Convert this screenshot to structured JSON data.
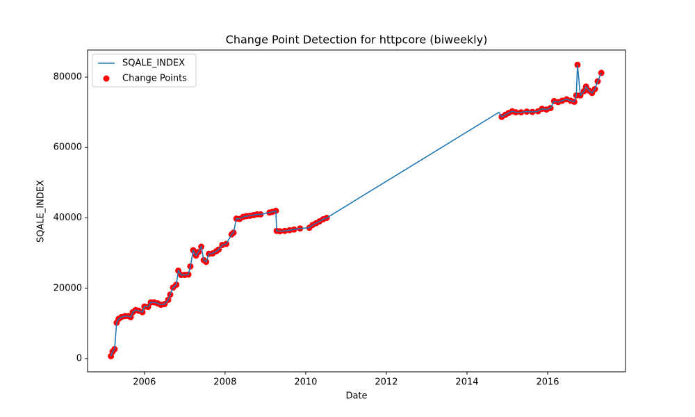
{
  "chart_data": {
    "type": "line",
    "title": "Change Point Detection for httpcore (biweekly)",
    "x_label": "Date",
    "y_label": "SQALE_INDEX",
    "xlim": [
      2004.59,
      2017.93
    ],
    "ylim": [
      -3750,
      87700
    ],
    "xticks": [
      2006,
      2008,
      2010,
      2012,
      2014,
      2016
    ],
    "yticks": [
      0,
      20000,
      40000,
      60000,
      80000
    ],
    "legend": "upper left",
    "series": [
      {
        "name": "SQALE_INDEX",
        "type": "line",
        "color": "#1f77b4",
        "x": [
          2005.17,
          2005.21,
          2005.26,
          2005.31,
          2005.36,
          2005.43,
          2005.52,
          2005.6,
          2005.66,
          2005.71,
          2005.78,
          2005.86,
          2005.95,
          2006.0,
          2006.09,
          2006.16,
          2006.24,
          2006.33,
          2006.41,
          2006.5,
          2006.59,
          2006.64,
          2006.71,
          2006.79,
          2006.84,
          2006.91,
          2007.0,
          2007.09,
          2007.14,
          2007.21,
          2007.28,
          2007.34,
          2007.41,
          2007.47,
          2007.53,
          2007.6,
          2007.69,
          2007.78,
          2007.84,
          2007.93,
          2008.03,
          2008.16,
          2008.21,
          2008.28,
          2008.36,
          2008.45,
          2008.53,
          2008.62,
          2008.71,
          2008.79,
          2008.88,
          2009.1,
          2009.17,
          2009.26,
          2009.28,
          2009.36,
          2009.48,
          2009.6,
          2009.71,
          2009.86,
          2010.09,
          2010.17,
          2010.26,
          2010.34,
          2010.43,
          2010.52,
          2014.79,
          2014.86,
          2014.95,
          2015.03,
          2015.12,
          2015.21,
          2015.34,
          2015.48,
          2015.62,
          2015.76,
          2015.86,
          2015.97,
          2016.07,
          2016.16,
          2016.26,
          2016.36,
          2016.47,
          2016.57,
          2016.66,
          2016.71,
          2016.74,
          2016.81,
          2016.9,
          2016.95,
          2017.02,
          2017.1,
          2017.17,
          2017.24,
          2017.33
        ],
        "values": [
          700,
          2000,
          2700,
          10200,
          11300,
          11800,
          12100,
          12100,
          11800,
          13200,
          13800,
          13600,
          13200,
          14800,
          14700,
          16000,
          16000,
          15700,
          15300,
          15500,
          16700,
          18200,
          20200,
          21000,
          25000,
          23800,
          23800,
          23900,
          26200,
          30800,
          29300,
          30300,
          31800,
          28000,
          27500,
          29800,
          29900,
          30500,
          31000,
          32300,
          32600,
          35300,
          35800,
          39800,
          39700,
          40300,
          40500,
          40600,
          40800,
          41000,
          41000,
          41500,
          41700,
          42000,
          36300,
          36200,
          36300,
          36500,
          36700,
          37000,
          37200,
          38000,
          38500,
          39000,
          39600,
          40000,
          70000,
          68700,
          69300,
          69800,
          70300,
          70000,
          70000,
          70200,
          70100,
          70300,
          71000,
          70800,
          71200,
          73200,
          72900,
          73300,
          73700,
          73300,
          73000,
          74800,
          83500,
          74800,
          76000,
          77300,
          76200,
          75500,
          76600,
          78800,
          81200
        ]
      },
      {
        "name": "Change Points",
        "type": "scatter",
        "color": "#ff0000",
        "x": [
          2005.17,
          2005.21,
          2005.26,
          2005.31,
          2005.36,
          2005.43,
          2005.52,
          2005.6,
          2005.66,
          2005.71,
          2005.78,
          2005.86,
          2005.95,
          2006.0,
          2006.09,
          2006.16,
          2006.24,
          2006.33,
          2006.41,
          2006.5,
          2006.59,
          2006.64,
          2006.71,
          2006.79,
          2006.84,
          2006.91,
          2007.0,
          2007.09,
          2007.14,
          2007.21,
          2007.28,
          2007.34,
          2007.41,
          2007.47,
          2007.53,
          2007.6,
          2007.69,
          2007.78,
          2007.84,
          2007.93,
          2008.03,
          2008.16,
          2008.21,
          2008.28,
          2008.36,
          2008.45,
          2008.53,
          2008.62,
          2008.71,
          2008.79,
          2008.88,
          2009.1,
          2009.17,
          2009.26,
          2009.28,
          2009.36,
          2009.48,
          2009.6,
          2009.71,
          2009.86,
          2010.09,
          2010.17,
          2010.26,
          2010.34,
          2010.43,
          2010.52,
          2014.86,
          2014.95,
          2015.03,
          2015.12,
          2015.21,
          2015.34,
          2015.48,
          2015.62,
          2015.76,
          2015.86,
          2015.97,
          2016.07,
          2016.16,
          2016.26,
          2016.36,
          2016.47,
          2016.57,
          2016.66,
          2016.71,
          2016.74,
          2016.81,
          2016.9,
          2016.95,
          2017.02,
          2017.1,
          2017.17,
          2017.24,
          2017.33
        ],
        "values": [
          700,
          2000,
          2700,
          10200,
          11300,
          11800,
          12100,
          12100,
          11800,
          13200,
          13800,
          13600,
          13200,
          14800,
          14700,
          16000,
          16000,
          15700,
          15300,
          15500,
          16700,
          18200,
          20200,
          21000,
          25000,
          23800,
          23800,
          23900,
          26200,
          30800,
          29300,
          30300,
          31800,
          28000,
          27500,
          29800,
          29900,
          30500,
          31000,
          32300,
          32600,
          35300,
          35800,
          39800,
          39700,
          40300,
          40500,
          40600,
          40800,
          41000,
          41000,
          41500,
          41700,
          42000,
          36300,
          36200,
          36300,
          36500,
          36700,
          37000,
          37200,
          38000,
          38500,
          39000,
          39600,
          40000,
          68700,
          69300,
          69800,
          70300,
          70000,
          70000,
          70200,
          70100,
          70300,
          71000,
          70800,
          71200,
          73200,
          72900,
          73300,
          73700,
          73300,
          73000,
          74800,
          83500,
          74800,
          76000,
          77300,
          76200,
          75500,
          76600,
          78800,
          81200
        ]
      }
    ]
  }
}
